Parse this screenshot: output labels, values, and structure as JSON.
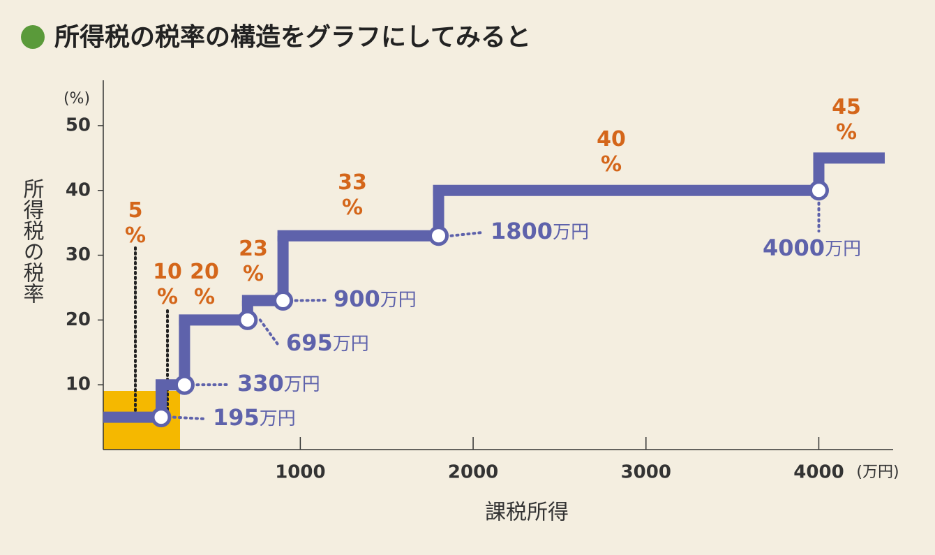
{
  "chart_data": {
    "type": "step",
    "title": "所得税の税率の構造をグラフにしてみると",
    "ylabel": "所得税の税率",
    "yunit": "(%)",
    "xlabel": "課税所得",
    "xunit": "(万円)",
    "xlim": [
      -140,
      4430
    ],
    "ylim": [
      0,
      57
    ],
    "xticks": [
      1000,
      2000,
      3000,
      4000
    ],
    "yticks": [
      10,
      20,
      30,
      40,
      50
    ],
    "breaks": [
      195,
      330,
      695,
      900,
      1800,
      4000
    ],
    "break_unit": "万円",
    "rates": [
      5,
      10,
      20,
      23,
      33,
      40,
      45
    ],
    "value_labels": [
      "5\n%",
      "10\n%",
      "20\n%",
      "23\n%",
      "33\n%",
      "40\n%",
      "45\n%"
    ],
    "color": "#5e62ab",
    "label_color": "#d4661a"
  }
}
